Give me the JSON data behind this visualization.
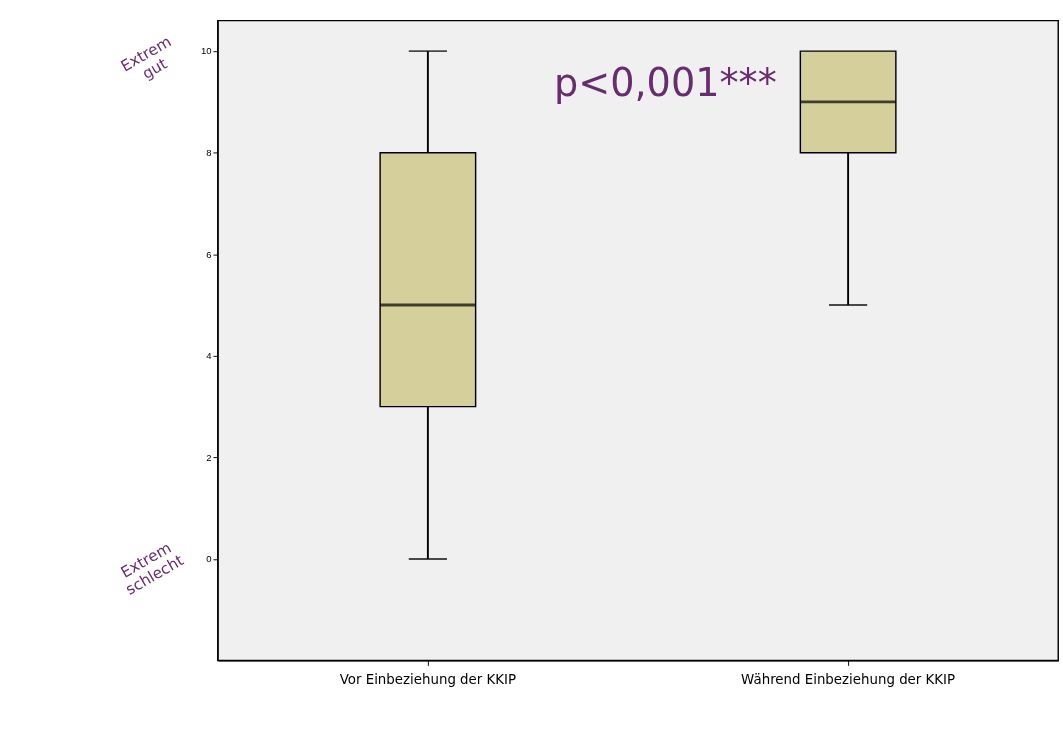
{
  "chart_data": {
    "type": "box",
    "categories": [
      "Vor Einbeziehung der KKIP",
      "Während Einbeziehung der KKIP"
    ],
    "boxes": [
      {
        "low": 0,
        "q1": 3,
        "median": 5,
        "q3": 8,
        "high": 10
      },
      {
        "low": 5,
        "q1": 8,
        "median": 9,
        "q3": 10,
        "high": 10
      }
    ],
    "color": "#d4cf9b",
    "ylim": [
      -2,
      10.6
    ],
    "yticks": [
      0,
      2,
      4,
      6,
      8,
      10
    ],
    "grid": false,
    "annotations": [
      "Extrem gut",
      "Extrem schlecht",
      "p<0,001***"
    ]
  }
}
